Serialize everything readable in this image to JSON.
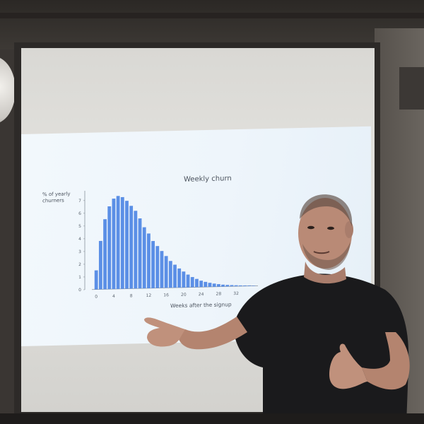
{
  "colors": {
    "slide_bg": "#eef5fb",
    "bar": "#5b8fe6",
    "shirt": "#1a1a1c",
    "skin": "#b98a76"
  },
  "slide": {
    "title": "Weekly churn",
    "ylabel_line1": "% of yearly",
    "ylabel_line2": "churners",
    "xlabel": "Weeks after the signup"
  },
  "chart_data": {
    "type": "bar",
    "title": "Weekly churn",
    "xlabel": "Weeks after the signup",
    "ylabel": "% of yearly churners",
    "x_ticks": [
      "0",
      "4",
      "8",
      "12",
      "16",
      "20",
      "24",
      "28",
      "32"
    ],
    "y_ticks": [
      "0",
      "1",
      "2",
      "3",
      "4",
      "5",
      "6",
      "7"
    ],
    "xlim": [
      -1,
      37
    ],
    "ylim": [
      0,
      7.6
    ],
    "x": [
      0,
      1,
      2,
      3,
      4,
      5,
      6,
      7,
      8,
      9,
      10,
      11,
      12,
      13,
      14,
      15,
      16,
      17,
      18,
      19,
      20,
      21,
      22,
      23,
      24,
      25,
      26,
      27,
      28,
      29,
      30,
      31,
      32,
      33,
      34,
      35,
      36
    ],
    "values": [
      1.5,
      3.8,
      5.5,
      6.5,
      7.1,
      7.3,
      7.2,
      6.9,
      6.5,
      6.1,
      5.5,
      4.8,
      4.3,
      3.7,
      3.3,
      2.9,
      2.5,
      2.1,
      1.8,
      1.5,
      1.25,
      1.0,
      0.8,
      0.65,
      0.5,
      0.4,
      0.32,
      0.25,
      0.2,
      0.15,
      0.12,
      0.1,
      0.08,
      0.06,
      0.05,
      0.04,
      0.03
    ],
    "grid": false,
    "legend": "none"
  }
}
